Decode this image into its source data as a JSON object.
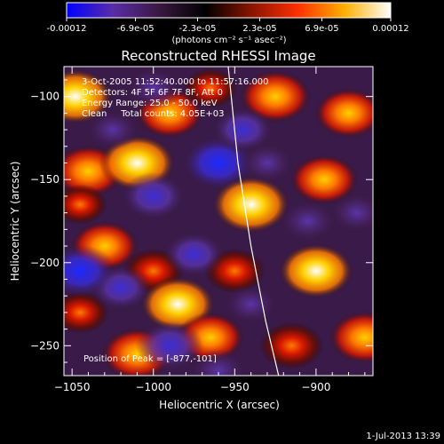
{
  "colorbar": {
    "tick_labels": [
      "-0.00012",
      "-6.9e-05",
      "-2.3e-05",
      "2.3e-05",
      "6.9e-05",
      "0.00012"
    ],
    "tick_values": [
      -0.00012,
      -6.9e-05,
      -2.3e-05,
      2.3e-05,
      6.9e-05,
      0.00012
    ],
    "range": [
      -0.00012,
      0.00012
    ],
    "unit_label": "(photons cm⁻² s⁻¹ asec⁻²)",
    "colors": [
      "#0000ff",
      "#5a2ca8",
      "#3a1840",
      "#000000",
      "#8a1500",
      "#ff3000",
      "#ffb000",
      "#ffffff"
    ]
  },
  "chart_data": {
    "type": "heatmap",
    "title": "Reconstructed RHESSI Image",
    "xlabel": "Heliocentric X (arcsec)",
    "ylabel": "Heliocentric Y (arcsec)",
    "xlim": [
      -1055,
      -865
    ],
    "ylim": [
      -268,
      -82
    ],
    "x_ticks": [
      -1050,
      -1000,
      -950,
      -900
    ],
    "x_tick_labels": [
      "−1050",
      "−1000",
      "−950",
      "−900"
    ],
    "y_ticks": [
      -100,
      -150,
      -200,
      -250
    ],
    "y_tick_labels": [
      "−100",
      "−150",
      "−200",
      "−250"
    ],
    "annotations": [
      "3-Oct-2005 11:52:40.000 to 11:57:16.000",
      "Detectors: 4F 5F 6F 7F 8F, Att 0",
      "Energy Range: 25.0 - 50.0 keV",
      "Clean     Total counts: 4.05E+03"
    ],
    "peak_label": "Position of Peak = [-877,-101]",
    "limb_points": [
      [
        -954,
        -82
      ],
      [
        -948,
        -140
      ],
      [
        -940,
        -190
      ],
      [
        -931,
        -235
      ],
      [
        -923,
        -268
      ]
    ],
    "blobs": [
      {
        "x": -1048,
        "y": -100,
        "v": 0.9
      },
      {
        "x": -1040,
        "y": -145,
        "v": 0.8
      },
      {
        "x": -1010,
        "y": -140,
        "v": 0.95
      },
      {
        "x": -990,
        "y": -110,
        "v": 0.7
      },
      {
        "x": -1030,
        "y": -190,
        "v": 0.7
      },
      {
        "x": -1000,
        "y": -205,
        "v": 0.5
      },
      {
        "x": -985,
        "y": -225,
        "v": 0.9
      },
      {
        "x": -1045,
        "y": -230,
        "v": 0.4
      },
      {
        "x": -1010,
        "y": -255,
        "v": 0.8
      },
      {
        "x": -965,
        "y": -245,
        "v": 0.7
      },
      {
        "x": -940,
        "y": -165,
        "v": 1.0
      },
      {
        "x": -925,
        "y": -100,
        "v": 0.8
      },
      {
        "x": -895,
        "y": -150,
        "v": 0.7
      },
      {
        "x": -900,
        "y": -205,
        "v": 0.9
      },
      {
        "x": -870,
        "y": -245,
        "v": 0.8
      },
      {
        "x": -915,
        "y": -250,
        "v": 0.6
      },
      {
        "x": -880,
        "y": -110,
        "v": 0.7
      },
      {
        "x": -950,
        "y": -205,
        "v": 0.5
      },
      {
        "x": -965,
        "y": -95,
        "v": 0.3
      },
      {
        "x": -1045,
        "y": -165,
        "v": 0.3
      },
      {
        "x": -1000,
        "y": -160,
        "v": -0.6
      },
      {
        "x": -960,
        "y": -140,
        "v": -0.85
      },
      {
        "x": -1020,
        "y": -215,
        "v": -0.5
      },
      {
        "x": -1045,
        "y": -205,
        "v": -0.8
      },
      {
        "x": -975,
        "y": -195,
        "v": -0.5
      },
      {
        "x": -945,
        "y": -120,
        "v": -0.5
      },
      {
        "x": -990,
        "y": -250,
        "v": -0.7
      },
      {
        "x": -960,
        "y": -265,
        "v": -0.4
      },
      {
        "x": -930,
        "y": -140,
        "v": -0.3
      },
      {
        "x": -905,
        "y": -175,
        "v": -0.4
      },
      {
        "x": -1000,
        "y": -95,
        "v": -0.4
      },
      {
        "x": -1025,
        "y": -120,
        "v": -0.3
      },
      {
        "x": -875,
        "y": -170,
        "v": -0.3
      },
      {
        "x": -940,
        "y": -225,
        "v": -0.3
      }
    ]
  },
  "footer": {
    "date": "1-Jul-2013 13:39"
  }
}
